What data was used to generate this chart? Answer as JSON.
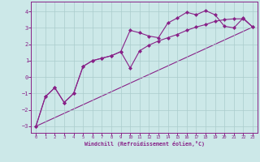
{
  "xlabel": "Windchill (Refroidissement éolien,°C)",
  "bg_color": "#cce8e8",
  "grid_color": "#aacccc",
  "line_color": "#882288",
  "xlim": [
    -0.5,
    23.5
  ],
  "ylim": [
    -3.4,
    4.6
  ],
  "yticks": [
    -3,
    -2,
    -1,
    0,
    1,
    2,
    3,
    4
  ],
  "xticks": [
    0,
    1,
    2,
    3,
    4,
    5,
    6,
    7,
    8,
    9,
    10,
    11,
    12,
    13,
    14,
    15,
    16,
    17,
    18,
    19,
    20,
    21,
    22,
    23
  ],
  "line1_x": [
    0,
    1,
    2,
    3,
    4,
    5,
    6,
    7,
    8,
    9,
    10,
    11,
    12,
    13,
    14,
    15,
    16,
    17,
    18,
    19,
    20,
    21,
    22,
    23
  ],
  "line1_y": [
    -3.0,
    -1.2,
    -0.65,
    -1.55,
    -1.0,
    0.65,
    1.0,
    1.15,
    1.3,
    1.55,
    2.85,
    2.7,
    2.5,
    2.4,
    3.3,
    3.6,
    3.95,
    3.8,
    4.05,
    3.8,
    3.1,
    3.0,
    3.6,
    3.05
  ],
  "line2_x": [
    0,
    1,
    2,
    3,
    4,
    5,
    6,
    7,
    8,
    9,
    10,
    11,
    12,
    13,
    14,
    15,
    16,
    17,
    18,
    19,
    20,
    21,
    22,
    23
  ],
  "line2_y": [
    -3.0,
    -1.2,
    -0.65,
    -1.55,
    -1.0,
    0.65,
    1.0,
    1.15,
    1.3,
    1.55,
    0.55,
    1.6,
    1.95,
    2.2,
    2.4,
    2.6,
    2.85,
    3.05,
    3.2,
    3.4,
    3.5,
    3.55,
    3.55,
    3.05
  ],
  "line3_x": [
    0,
    23
  ],
  "line3_y": [
    -3.0,
    3.05
  ]
}
